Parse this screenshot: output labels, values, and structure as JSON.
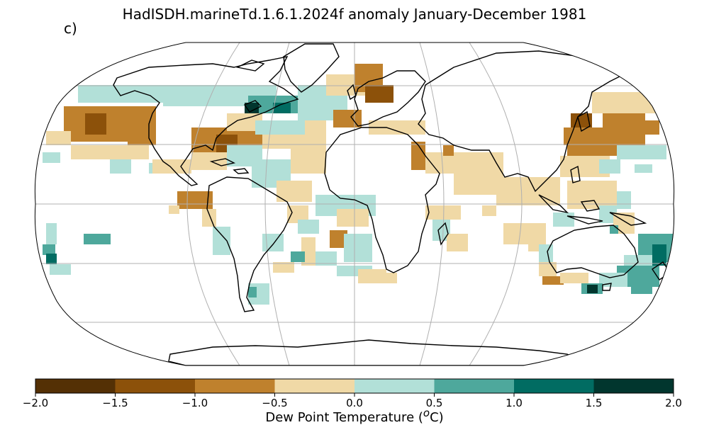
{
  "title": "HadISDH.marineTd.1.6.1.2024f anomaly January-December 1981",
  "panel_label": "c)",
  "projection": "Robinson",
  "colorbar": {
    "label": "Dew Point Temperature (",
    "label_unit_sup": "o",
    "label_unit_tail": "C)",
    "ticks": [
      "−2.0",
      "−1.5",
      "−1.0",
      "−0.5",
      "0.0",
      "0.5",
      "1.0",
      "1.5",
      "2.0"
    ],
    "colors": [
      "#543005",
      "#8c510a",
      "#bf812d",
      "#f0d9a6",
      "#b2e0d8",
      "#4ea89c",
      "#016c62",
      "#01362e"
    ]
  }
}
